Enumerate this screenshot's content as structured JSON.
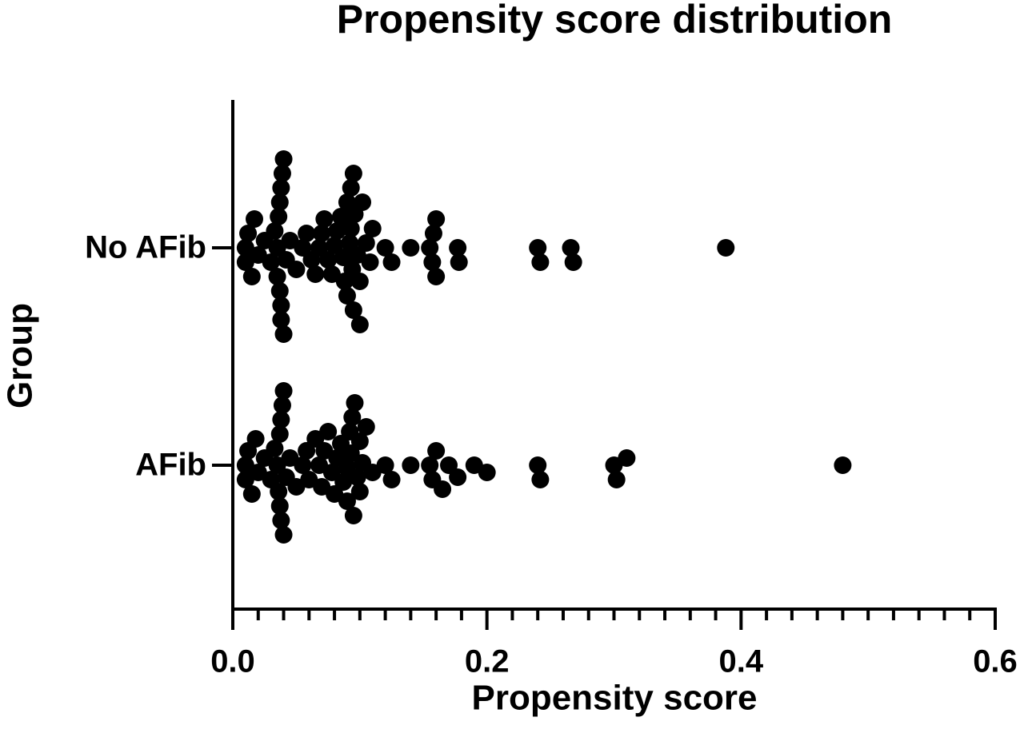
{
  "chart_data": {
    "type": "strip",
    "title": "Propensity score distribution",
    "x_label": "Propensity score",
    "y_label": "Group",
    "categories": [
      "No AFib",
      "AFib"
    ],
    "values": [
      [
        0.01,
        0.01,
        0.012,
        0.015,
        0.017,
        0.02,
        0.025,
        0.03,
        0.033,
        0.035,
        0.035,
        0.036,
        0.037,
        0.037,
        0.038,
        0.038,
        0.038,
        0.039,
        0.04,
        0.04,
        0.042,
        0.045,
        0.05,
        0.055,
        0.058,
        0.062,
        0.065,
        0.068,
        0.07,
        0.072,
        0.075,
        0.078,
        0.08,
        0.082,
        0.085,
        0.087,
        0.088,
        0.09,
        0.09,
        0.092,
        0.093,
        0.093,
        0.094,
        0.095,
        0.095,
        0.096,
        0.098,
        0.1,
        0.1,
        0.102,
        0.105,
        0.108,
        0.11,
        0.12,
        0.125,
        0.14,
        0.155,
        0.157,
        0.158,
        0.16,
        0.16,
        0.177,
        0.178,
        0.24,
        0.242,
        0.266,
        0.268,
        0.388
      ],
      [
        0.01,
        0.01,
        0.012,
        0.015,
        0.018,
        0.02,
        0.025,
        0.03,
        0.033,
        0.035,
        0.036,
        0.037,
        0.037,
        0.038,
        0.038,
        0.039,
        0.04,
        0.04,
        0.042,
        0.045,
        0.05,
        0.055,
        0.058,
        0.06,
        0.065,
        0.068,
        0.07,
        0.072,
        0.075,
        0.078,
        0.08,
        0.082,
        0.085,
        0.087,
        0.09,
        0.09,
        0.092,
        0.093,
        0.094,
        0.095,
        0.096,
        0.098,
        0.1,
        0.1,
        0.102,
        0.105,
        0.11,
        0.12,
        0.125,
        0.14,
        0.155,
        0.157,
        0.16,
        0.165,
        0.17,
        0.177,
        0.19,
        0.2,
        0.24,
        0.242,
        0.3,
        0.302,
        0.31,
        0.48
      ]
    ],
    "color": "#000000",
    "xlim": [
      0,
      0.6
    ],
    "xticks": [
      {
        "value": 0,
        "label": "0.0"
      },
      0.2,
      0.4,
      0.6
    ]
  }
}
